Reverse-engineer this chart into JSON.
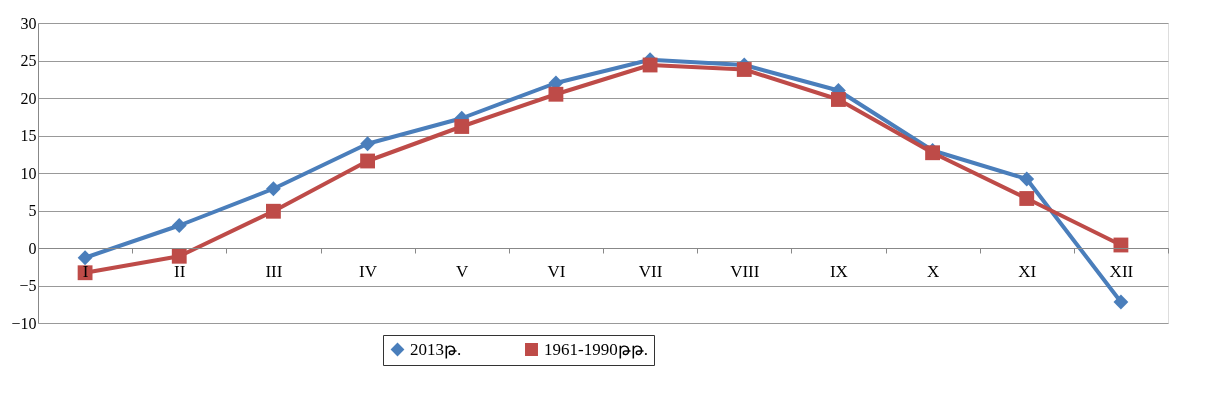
{
  "chart_data": {
    "type": "line",
    "categories": [
      "I",
      "II",
      "III",
      "IV",
      "V",
      "VI",
      "VII",
      "VIII",
      "IX",
      "X",
      "XI",
      "XII"
    ],
    "series": [
      {
        "name": "2013թ.",
        "color": "#4a7ebb",
        "marker": "diamond",
        "values": [
          -1.3,
          3,
          7.9,
          13.9,
          17.3,
          22,
          25.1,
          24.4,
          21,
          13,
          9.2,
          -7.2
        ]
      },
      {
        "name": "1961-1990թթ.",
        "color": "#be4b48",
        "marker": "square",
        "values": [
          -3.3,
          -1.1,
          4.9,
          11.6,
          16.2,
          20.5,
          24.4,
          23.8,
          19.8,
          12.7,
          6.6,
          0.4
        ]
      }
    ],
    "ylim": [
      -10,
      30
    ],
    "yticks": [
      -10,
      -5,
      0,
      5,
      10,
      15,
      20,
      25,
      30
    ],
    "grid": "y",
    "legend": "bottom",
    "line_style": "solid"
  }
}
